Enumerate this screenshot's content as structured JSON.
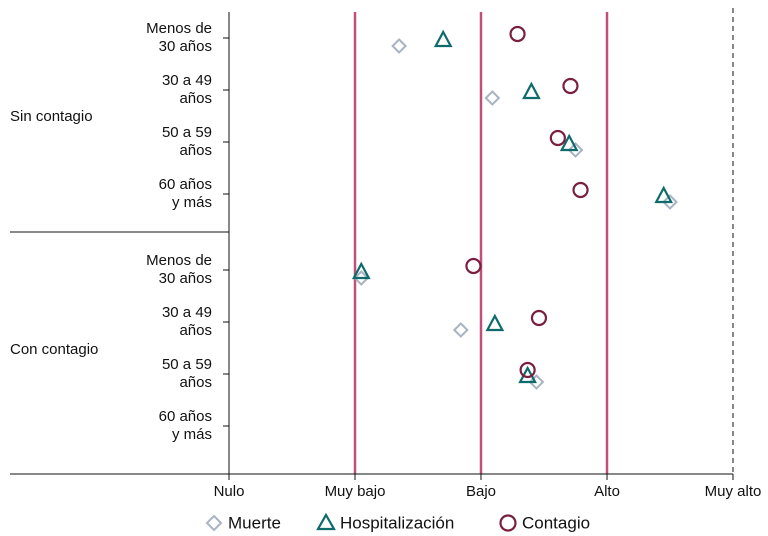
{
  "chart_data": {
    "type": "dot",
    "groups": [
      "Sin contagio",
      "Con contagio"
    ],
    "categories": [
      [
        "Menos de",
        "30 años"
      ],
      [
        "30 a 49",
        "años"
      ],
      [
        "50 a 59",
        "años"
      ],
      [
        "60 años",
        "y más"
      ],
      [
        "Menos de",
        "30 años"
      ],
      [
        "30 a 49",
        "años"
      ],
      [
        "50 a 59",
        "años"
      ],
      [
        "60 años",
        "y más"
      ]
    ],
    "xlim": [
      0,
      4
    ],
    "xticks": [
      {
        "value": 0,
        "label": "Nulo"
      },
      {
        "value": 1,
        "label": "Muy bajo"
      },
      {
        "value": 2,
        "label": "Bajo"
      },
      {
        "value": 3,
        "label": "Alto"
      },
      {
        "value": 4,
        "label": "Muy alto"
      }
    ],
    "series": [
      {
        "name": "Muerte",
        "marker": "diamond",
        "color": "#a9b4c2",
        "values": [
          1.35,
          2.09,
          2.75,
          3.5,
          1.05,
          1.84,
          2.44,
          null
        ]
      },
      {
        "name": "Hospitalización",
        "marker": "triangle",
        "color": "#0e6b6b",
        "values": [
          1.7,
          2.4,
          2.7,
          3.45,
          1.05,
          2.11,
          2.37,
          null
        ]
      },
      {
        "name": "Contagio",
        "marker": "circle",
        "color": "#7a1f3f",
        "values": [
          2.29,
          2.71,
          2.61,
          2.79,
          1.94,
          2.46,
          2.37,
          null
        ]
      }
    ]
  }
}
